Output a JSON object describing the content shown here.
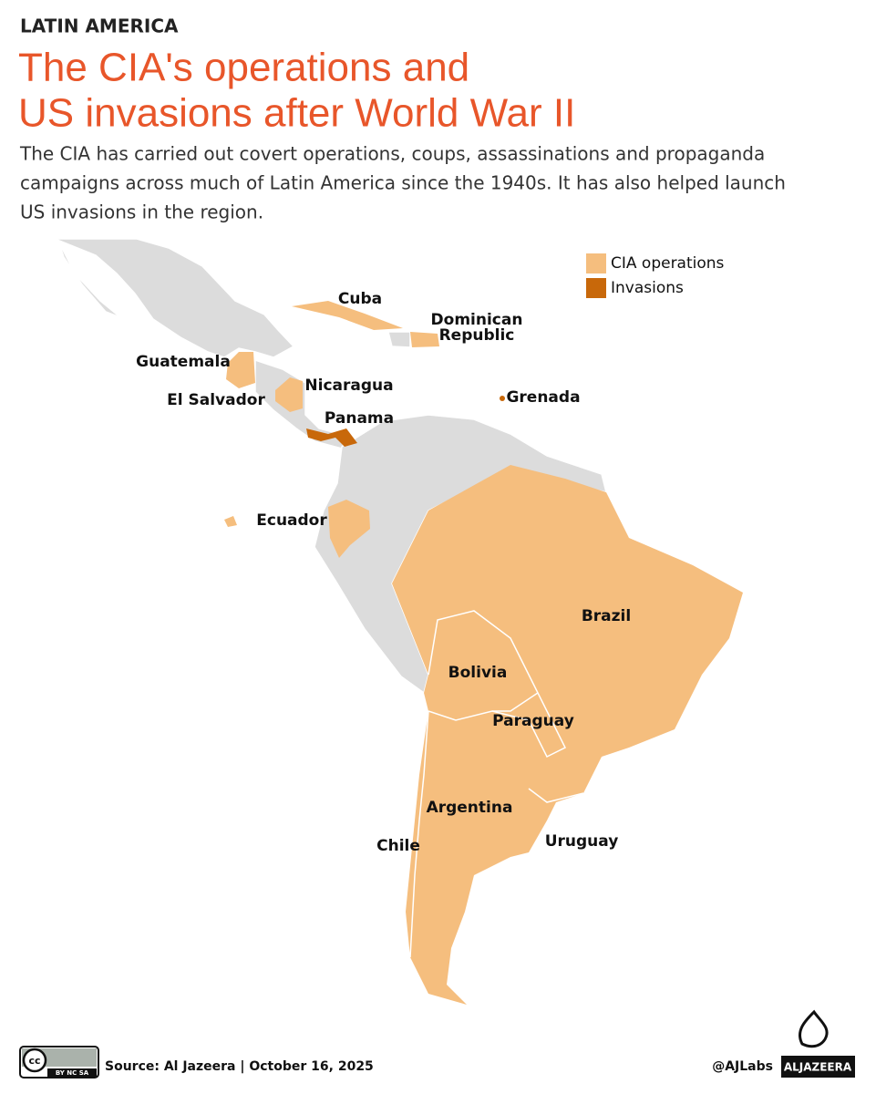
{
  "header": {
    "kicker": "LATIN AMERICA",
    "title_lines": [
      "The CIA's operations and",
      "US invasions after World War II"
    ],
    "subtitle_lines": [
      "The CIA has carried out covert operations, coups, assassinations and propaganda",
      "campaigns across much of Latin America since the 1940s. It has also helped launch",
      "US invasions in the region."
    ]
  },
  "legend": [
    {
      "label": "CIA operations",
      "color": "#f5be7e"
    },
    {
      "label": "Invasions",
      "color": "#c8680a"
    }
  ],
  "labels": {
    "cuba": "Cuba",
    "dominican_republic": [
      "Dominican",
      "Republic"
    ],
    "guatemala": "Guatemala",
    "el_salvador": "El Salvador",
    "nicaragua": "Nicaragua",
    "panama": "Panama",
    "grenada": "Grenada",
    "ecuador": "Ecuador",
    "brazil": "Brazil",
    "bolivia": "Bolivia",
    "paraguay": "Paraguay",
    "argentina": "Argentina",
    "chile": "Chile",
    "uruguay": "Uruguay"
  },
  "footer": {
    "license_cc": "cc",
    "license_terms": "BY NC SA",
    "source": "Source:  Al Jazeera | October 16, 2025",
    "handle": "@AJLabs",
    "brand": "ALJAZEERA"
  }
}
